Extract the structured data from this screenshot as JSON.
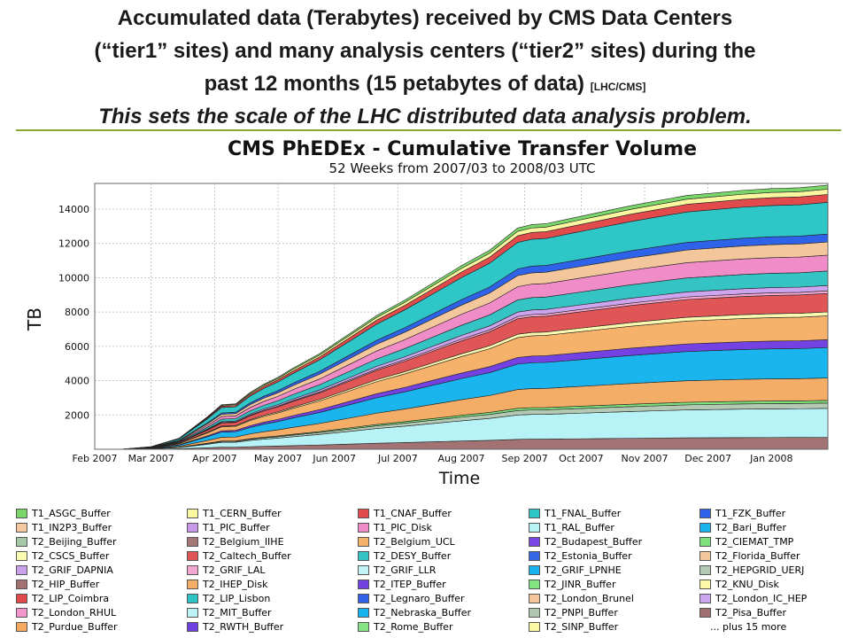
{
  "slide": {
    "title_line1": "Accumulated data (Terabytes) received by CMS Data Centers",
    "title_line2": "(“tier1” sites) and many analysis centers (“tier2” sites) during the",
    "title_line3": "past 12 months (15 petabytes of data)",
    "title_source": "[LHC/CMS]",
    "subtitle": "This sets the scale of the LHC distributed data analysis problem."
  },
  "chart_data": {
    "type": "area",
    "title": "CMS PhEDEx - Cumulative Transfer Volume",
    "subtitle": "52 Weeks from 2007/03 to  2008/03 UTC",
    "xlabel": "Time",
    "ylabel": "TB",
    "ylim": [
      0,
      15500
    ],
    "yticks": [
      2000,
      4000,
      6000,
      8000,
      10000,
      12000,
      14000
    ],
    "x_tick_labels": [
      "Feb 2007",
      "Mar 2007",
      "Apr 2007",
      "May 2007",
      "Jun 2007",
      "Jul 2007",
      "Aug 2007",
      "Sep 2007",
      "Oct 2007",
      "Nov 2007",
      "Dec 2007",
      "Jan 2008"
    ],
    "x_week_start": 0,
    "x_week_end": 52,
    "x_tick_weeks": [
      0,
      4,
      8.5,
      13,
      17,
      21.5,
      26,
      30.5,
      34.5,
      39,
      43.5,
      48
    ],
    "weeks": [
      0,
      2,
      4,
      6,
      8,
      9,
      10,
      11,
      12,
      13,
      14,
      16,
      18,
      20,
      22,
      24,
      26,
      28,
      30,
      31,
      32,
      34,
      36,
      38,
      40,
      42,
      44,
      46,
      48,
      50,
      52
    ],
    "total_tb": [
      0,
      10,
      150,
      650,
      1900,
      2600,
      2650,
      3300,
      3800,
      4200,
      4700,
      5600,
      6700,
      7800,
      8700,
      9700,
      10700,
      11600,
      12900,
      13100,
      13150,
      13500,
      13850,
      14200,
      14500,
      14800,
      14950,
      15100,
      15200,
      15250,
      15400
    ],
    "legend_more": "... plus 15 more",
    "series": [
      {
        "name": "T1_ASGC_Buffer",
        "color": "#7bd66a"
      },
      {
        "name": "T1_CERN_Buffer",
        "color": "#fbf7a0"
      },
      {
        "name": "T1_CNAF_Buffer",
        "color": "#e24b4b"
      },
      {
        "name": "T1_FNAL_Buffer",
        "color": "#2ec6c6"
      },
      {
        "name": "T1_FZK_Buffer",
        "color": "#2e62e8"
      },
      {
        "name": "T1_IN2P3_Buffer",
        "color": "#f6c9a0"
      },
      {
        "name": "T1_PIC_Buffer",
        "color": "#c99aea"
      },
      {
        "name": "T1_PIC_Disk",
        "color": "#f08cc7"
      },
      {
        "name": "T1_RAL_Buffer",
        "color": "#b7f3f6"
      },
      {
        "name": "T2_Bari_Buffer",
        "color": "#1ab5ef"
      },
      {
        "name": "T2_Beijing_Buffer",
        "color": "#a6c8a6"
      },
      {
        "name": "T2_Belgium_IIHE",
        "color": "#a57878"
      },
      {
        "name": "T2_Belgium_UCL",
        "color": "#f6b26b"
      },
      {
        "name": "T2_Budapest_Buffer",
        "color": "#7a46e6"
      },
      {
        "name": "T2_CIEMAT_TMP",
        "color": "#7de27d"
      },
      {
        "name": "T2_CSCS_Buffer",
        "color": "#fafab0"
      },
      {
        "name": "T2_Caltech_Buffer",
        "color": "#e05555"
      },
      {
        "name": "T2_DESY_Buffer",
        "color": "#35c4c4"
      },
      {
        "name": "T2_Estonia_Buffer",
        "color": "#3466e6"
      },
      {
        "name": "T2_Florida_Buffer",
        "color": "#f4c69c"
      },
      {
        "name": "T2_GRIF_DAPNIA",
        "color": "#c9a0ec"
      },
      {
        "name": "T2_GRIF_LAL",
        "color": "#f3a7d2"
      },
      {
        "name": "T2_GRIF_LLR",
        "color": "#c3f4f6"
      },
      {
        "name": "T2_GRIF_LPNHE",
        "color": "#18b3ee"
      },
      {
        "name": "T2_HEPGRID_UERJ",
        "color": "#b3c9b3"
      },
      {
        "name": "T2_HIP_Buffer",
        "color": "#a37373"
      },
      {
        "name": "T2_IHEP_Disk",
        "color": "#f4ad66"
      },
      {
        "name": "T2_ITEP_Buffer",
        "color": "#7442e2"
      },
      {
        "name": "T2_JINR_Buffer",
        "color": "#80e480"
      },
      {
        "name": "T2_KNU_Disk",
        "color": "#fbfaa8"
      },
      {
        "name": "T2_LIP_Coimbra",
        "color": "#e04a4a"
      },
      {
        "name": "T2_LIP_Lisbon",
        "color": "#2fc3c3"
      },
      {
        "name": "T2_Legnaro_Buffer",
        "color": "#3061e6"
      },
      {
        "name": "T2_London_Brunel",
        "color": "#f5c49a"
      },
      {
        "name": "T2_London_IC_HEP",
        "color": "#cda4ee"
      },
      {
        "name": "T2_London_RHUL",
        "color": "#f298cc"
      },
      {
        "name": "T2_MIT_Buffer",
        "color": "#bdf3f6"
      },
      {
        "name": "T2_Nebraska_Buffer",
        "color": "#15b4ef"
      },
      {
        "name": "T2_PNPI_Buffer",
        "color": "#b0c7b0"
      },
      {
        "name": "T2_Pisa_Buffer",
        "color": "#a07070"
      },
      {
        "name": "T2_Purdue_Buffer",
        "color": "#f5aa60"
      },
      {
        "name": "T2_RWTH_Buffer",
        "color": "#7040e0"
      },
      {
        "name": "T2_Rome_Buffer",
        "color": "#86e486"
      },
      {
        "name": "T2_SINP_Buffer",
        "color": "#fbf8a4"
      }
    ],
    "stack_order_bottom_up": [
      "T2_HIP_Buffer",
      "T1_RAL_Buffer",
      "T2_HEPGRID_UERJ",
      "T2_CIEMAT_TMP",
      "T2_IHEP_Disk",
      "T2_Bari_Buffer",
      "T2_ITEP_Buffer",
      "T2_Belgium_UCL",
      "T2_CSCS_Buffer",
      "T2_Caltech_Buffer",
      "T2_GRIF_LAL",
      "T2_London_IC_HEP",
      "T2_DESY_Buffer",
      "T1_PIC_Disk",
      "T2_Florida_Buffer",
      "T1_FZK_Buffer",
      "T1_FNAL_Buffer",
      "T1_CNAF_Buffer",
      "T1_CERN_Buffer",
      "T1_ASGC_Buffer"
    ],
    "stack_shares": [
      0.045,
      0.11,
      0.02,
      0.01,
      0.085,
      0.115,
      0.03,
      0.09,
      0.015,
      0.07,
      0.01,
      0.02,
      0.055,
      0.06,
      0.05,
      0.03,
      0.12,
      0.03,
      0.02,
      0.015
    ]
  }
}
